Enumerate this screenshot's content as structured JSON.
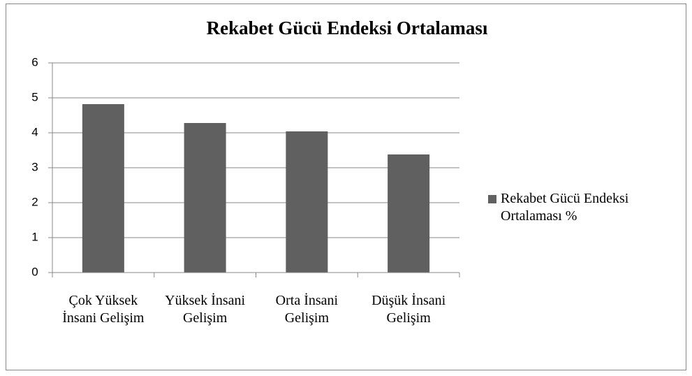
{
  "chart_data": {
    "type": "bar",
    "title": "Rekabet Gücü Endeksi Ortalaması",
    "categories": [
      "Çok Yüksek İnsani Gelişim",
      "Yüksek İnsani Gelişim",
      "Orta İnsani Gelişim",
      "Düşük İnsani Gelişim"
    ],
    "series": [
      {
        "name": "Rekabet Gücü Endeksi Ortalaması %",
        "color": "#606060",
        "values": [
          4.82,
          4.28,
          4.04,
          3.38
        ]
      }
    ],
    "ylim": [
      0,
      6
    ],
    "yticks": [
      0,
      1,
      2,
      3,
      4,
      5,
      6
    ],
    "grid": true,
    "legend": "right"
  }
}
